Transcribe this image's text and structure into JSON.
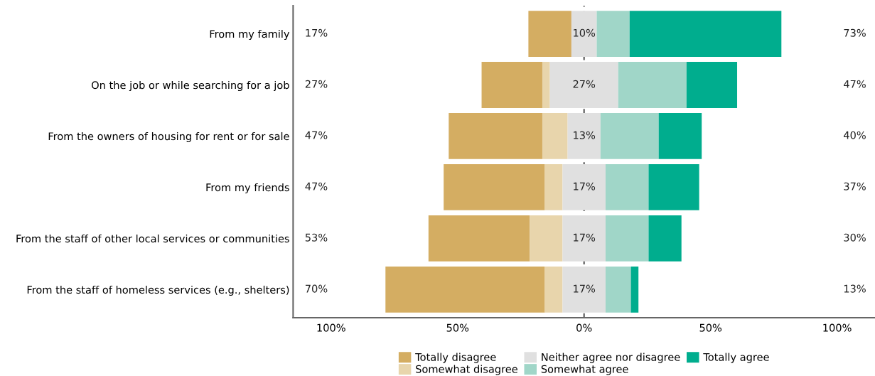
{
  "chart_data": {
    "type": "bar",
    "orientation": "horizontal",
    "categories": [
      "From my family",
      "On the job or while searching for a job",
      "From the owners of housing for rent or for sale",
      "From my friends",
      "From the staff of other local services or communities",
      "From the staff of homeless services (e.g., shelters)"
    ],
    "series": [
      {
        "name": "Totally disagree",
        "color": "#d4ad62",
        "values": [
          17,
          24,
          37,
          40,
          40,
          63
        ],
        "base": [
          -22,
          -40.5,
          -53.5,
          -55.5,
          -61.5,
          -78.5
        ]
      },
      {
        "name": "Somewhat disagree",
        "color": "#e8d5ac",
        "values": [
          null,
          3,
          10,
          7,
          13,
          7
        ],
        "base": [
          null,
          -16.5,
          -16.5,
          -15.5,
          -21.5,
          -15.5
        ]
      },
      {
        "name": "Neither agree nor disagree",
        "color": "#e0e0e0",
        "values": [
          10,
          27,
          13,
          17,
          17,
          17
        ],
        "base": [
          -5,
          -13.5,
          -6.5,
          -8.5,
          -8.5,
          -8.5
        ],
        "value_labels": [
          "10%",
          "27%",
          "13%",
          "17%",
          "17%",
          "17%"
        ]
      },
      {
        "name": "Somewhat agree",
        "color": "#a0d6c8",
        "values": [
          13,
          27,
          23,
          17,
          17,
          10
        ],
        "base": [
          5,
          13.5,
          6.5,
          8.5,
          8.5,
          8.5
        ]
      },
      {
        "name": "Totally agree",
        "color": "#00ad8e",
        "values": [
          60,
          20,
          17,
          20,
          13,
          3
        ],
        "base": [
          18,
          40.5,
          29.5,
          25.5,
          25.5,
          18.5
        ]
      }
    ],
    "xlim": [
      -115,
      115
    ],
    "xticks": [
      {
        "value": -100,
        "label": "100%"
      },
      {
        "value": -50,
        "label": "50%"
      },
      {
        "value": 0,
        "label": "0%"
      },
      {
        "value": 50,
        "label": "50%"
      },
      {
        "value": 100,
        "label": "100%"
      }
    ],
    "ref_lines": [
      {
        "axis": "x",
        "value": 0,
        "color": "#555555",
        "line_style": "dashed"
      }
    ],
    "annotations": [
      "17%",
      "73%",
      "27%",
      "47%",
      "47%",
      "40%",
      "47%",
      "37%",
      "53%",
      "30%",
      "70%",
      "13%"
    ],
    "grid": false,
    "legend": "bottom"
  }
}
